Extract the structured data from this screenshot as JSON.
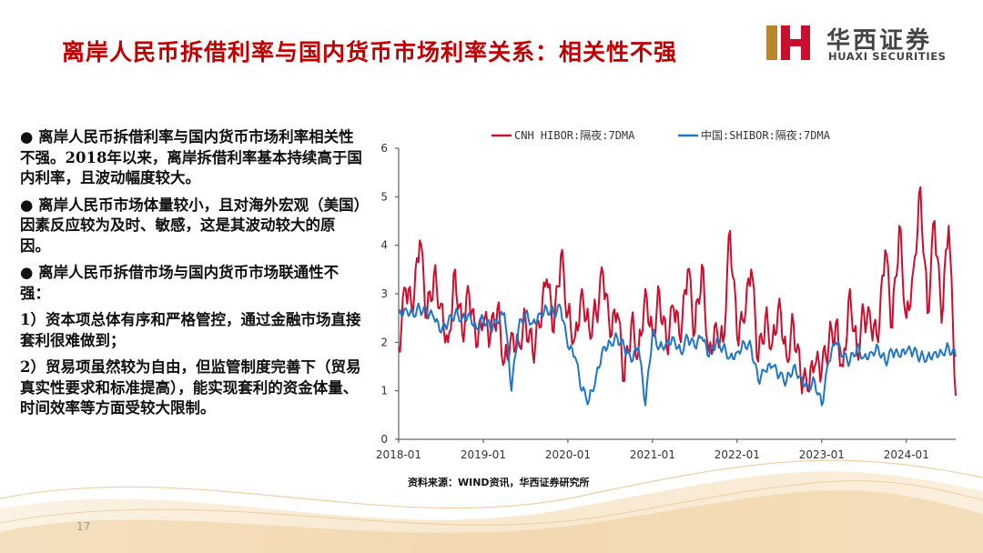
{
  "header": {
    "title": "离岸人民币拆借利率与国内货币市场利率关系：相关性不强",
    "logo_cn": "华西证券",
    "logo_en": "HUAXI SECURITIES"
  },
  "body_text": [
    "● 离岸人民币拆借利率与国内货币市场利率相关性不强。2018年以来，离岸拆借利率基本持续高于国内利率，且波动幅度较大。",
    "● 离岸人民币市场体量较小，且对海外宏观（美国）因素反应较为及时、敏感，这是其波动较大的原因。",
    "● 离岸人民币拆借市场与国内货币市场联通性不强：",
    "1）资本项总体有序和严格管控，通过金融市场直接套利很难做到；",
    "2）贸易项虽然较为自由，但监管制度完善下（贸易真实性要求和标准提高），能实现套利的资金体量、时间效率等方面受较大限制。"
  ],
  "source": "资料来源：WIND资讯，华西证券研究所",
  "page_number": "17",
  "colors": {
    "title": "#c00000",
    "cnh": "#c8102e",
    "shibor": "#1f77c4"
  },
  "chart_data": {
    "type": "line",
    "x_ticks": [
      "2018-01",
      "2019-01",
      "2020-01",
      "2021-01",
      "2022-01",
      "2023-01",
      "2024-01"
    ],
    "y_ticks": [
      "0",
      "1",
      "2",
      "3",
      "4",
      "5",
      "6"
    ],
    "ylim": [
      0,
      6
    ],
    "xlim": [
      "2018-01",
      "2024-08"
    ],
    "grid": false,
    "legend_position": "top",
    "series": [
      {
        "name": "CNH HIBOR:隔夜:7DMA",
        "x": [
          "2018-01",
          "2018-02",
          "2018-03",
          "2018-04",
          "2018-05",
          "2018-06",
          "2018-07",
          "2018-08",
          "2018-09",
          "2018-10",
          "2018-11",
          "2018-12",
          "2019-01",
          "2019-02",
          "2019-03",
          "2019-04",
          "2019-05",
          "2019-06",
          "2019-07",
          "2019-08",
          "2019-09",
          "2019-10",
          "2019-11",
          "2019-12",
          "2020-01",
          "2020-02",
          "2020-03",
          "2020-04",
          "2020-05",
          "2020-06",
          "2020-07",
          "2020-08",
          "2020-09",
          "2020-10",
          "2020-11",
          "2020-12",
          "2021-01",
          "2021-02",
          "2021-03",
          "2021-04",
          "2021-05",
          "2021-06",
          "2021-07",
          "2021-08",
          "2021-09",
          "2021-10",
          "2021-11",
          "2021-12",
          "2022-01",
          "2022-02",
          "2022-03",
          "2022-04",
          "2022-05",
          "2022-06",
          "2022-07",
          "2022-08",
          "2022-09",
          "2022-10",
          "2022-11",
          "2022-12",
          "2023-01",
          "2023-02",
          "2023-03",
          "2023-04",
          "2023-05",
          "2023-06",
          "2023-07",
          "2023-08",
          "2023-09",
          "2023-10",
          "2023-11",
          "2023-12",
          "2024-01",
          "2024-02",
          "2024-03",
          "2024-04",
          "2024-05",
          "2024-06",
          "2024-07",
          "2024-08"
        ],
        "values": [
          1.9,
          3.1,
          2.6,
          4.1,
          2.5,
          3.4,
          2.8,
          2.0,
          3.5,
          2.2,
          3.0,
          1.9,
          2.4,
          2.1,
          2.7,
          1.6,
          2.2,
          2.0,
          2.5,
          1.8,
          2.3,
          3.3,
          2.2,
          3.8,
          2.6,
          2.1,
          3.1,
          2.3,
          2.6,
          3.4,
          2.1,
          2.6,
          1.2,
          2.4,
          1.8,
          3.1,
          2.2,
          3.0,
          1.9,
          2.7,
          2.0,
          3.5,
          2.2,
          3.6,
          1.8,
          2.4,
          2.0,
          4.3,
          2.1,
          2.4,
          3.5,
          1.6,
          2.5,
          2.0,
          2.9,
          1.7,
          2.4,
          1.3,
          1.0,
          1.5,
          1.4,
          2.0,
          2.4,
          1.5,
          3.1,
          1.8,
          2.6,
          2.3,
          2.0,
          3.9,
          2.3,
          4.4,
          2.5,
          3.5,
          5.2,
          2.6,
          4.5,
          2.4,
          4.4,
          0.9
        ]
      },
      {
        "name": "中国:SHIBOR:隔夜:7DMA",
        "x": [
          "2018-01",
          "2018-02",
          "2018-03",
          "2018-04",
          "2018-05",
          "2018-06",
          "2018-07",
          "2018-08",
          "2018-09",
          "2018-10",
          "2018-11",
          "2018-12",
          "2019-01",
          "2019-02",
          "2019-03",
          "2019-04",
          "2019-05",
          "2019-06",
          "2019-07",
          "2019-08",
          "2019-09",
          "2019-10",
          "2019-11",
          "2019-12",
          "2020-01",
          "2020-02",
          "2020-03",
          "2020-04",
          "2020-05",
          "2020-06",
          "2020-07",
          "2020-08",
          "2020-09",
          "2020-10",
          "2020-11",
          "2020-12",
          "2021-01",
          "2021-02",
          "2021-03",
          "2021-04",
          "2021-05",
          "2021-06",
          "2021-07",
          "2021-08",
          "2021-09",
          "2021-10",
          "2021-11",
          "2021-12",
          "2022-01",
          "2022-02",
          "2022-03",
          "2022-04",
          "2022-05",
          "2022-06",
          "2022-07",
          "2022-08",
          "2022-09",
          "2022-10",
          "2022-11",
          "2022-12",
          "2023-01",
          "2023-02",
          "2023-03",
          "2023-04",
          "2023-05",
          "2023-06",
          "2023-07",
          "2023-08",
          "2023-09",
          "2023-10",
          "2023-11",
          "2023-12",
          "2024-01",
          "2024-02",
          "2024-03",
          "2024-04",
          "2024-05",
          "2024-06",
          "2024-07",
          "2024-08"
        ],
        "values": [
          2.6,
          2.7,
          2.6,
          2.7,
          2.6,
          2.5,
          2.2,
          2.4,
          2.6,
          2.5,
          2.6,
          2.3,
          2.5,
          2.3,
          2.4,
          2.6,
          1.0,
          2.3,
          2.6,
          2.4,
          2.6,
          2.7,
          2.6,
          2.7,
          1.9,
          1.7,
          1.0,
          0.8,
          1.3,
          1.9,
          2.0,
          2.1,
          1.9,
          1.6,
          1.9,
          0.7,
          2.2,
          1.9,
          2.0,
          2.1,
          1.8,
          2.1,
          1.9,
          2.1,
          1.7,
          2.0,
          1.9,
          1.7,
          1.8,
          2.0,
          1.9,
          1.2,
          1.4,
          1.5,
          1.3,
          1.2,
          1.5,
          1.3,
          1.1,
          1.2,
          0.7,
          1.6,
          2.0,
          1.7,
          1.6,
          1.9,
          1.7,
          1.8,
          1.9,
          1.6,
          1.8,
          1.7,
          1.8,
          1.8,
          1.7,
          1.7,
          1.8,
          1.8,
          1.9,
          1.7
        ]
      }
    ]
  }
}
